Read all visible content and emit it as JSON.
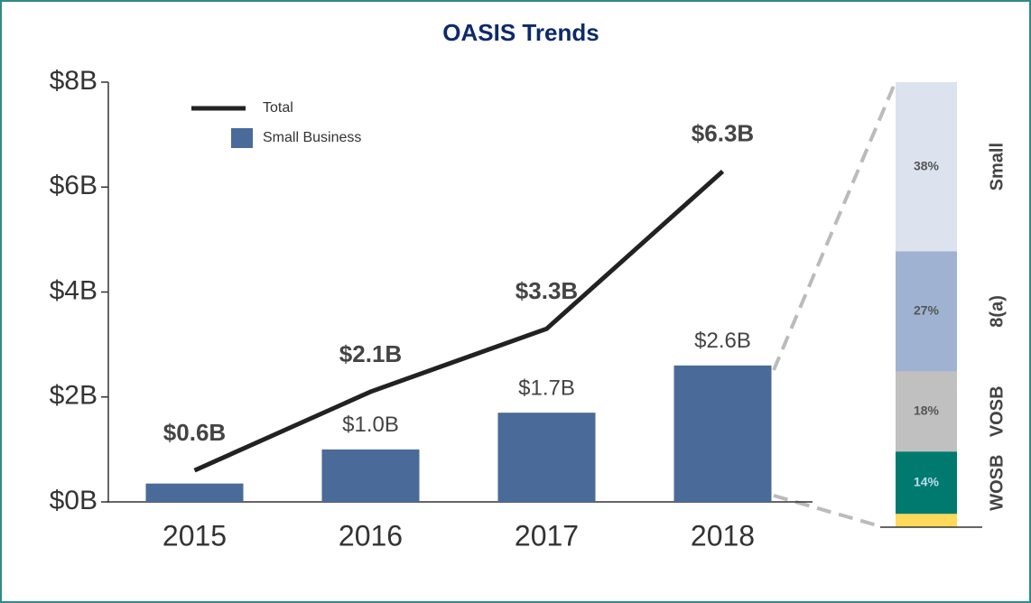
{
  "chart_data": [
    {
      "type": "bar",
      "title": "OASIS Trends",
      "categories": [
        "2015",
        "2016",
        "2017",
        "2018"
      ],
      "series": [
        {
          "name": "Total",
          "kind": "line",
          "color": "#222222",
          "values": [
            0.6,
            2.1,
            3.3,
            6.3
          ],
          "value_labels": [
            "$0.6B",
            "$2.1B",
            "$3.3B",
            "$6.3B"
          ]
        },
        {
          "name": "Small Business",
          "kind": "bar",
          "color": "#4a6a9a",
          "values": [
            0.35,
            1.0,
            1.7,
            2.6
          ],
          "value_labels": [
            null,
            "$1.0B",
            "$1.7B",
            "$2.6B"
          ]
        }
      ],
      "ylim": [
        0,
        8
      ],
      "yticks": [
        {
          "value": 0,
          "label": "$0B"
        },
        {
          "value": 2,
          "label": "$2B"
        },
        {
          "value": 4,
          "label": "$4B"
        },
        {
          "value": 6,
          "label": "$6B"
        },
        {
          "value": 8,
          "label": "$8B"
        }
      ],
      "legend": "top-left"
    },
    {
      "type": "stacked_bar",
      "categories": [
        "Small",
        "8(a)",
        "VOSB",
        "WOSB",
        null
      ],
      "values": [
        38,
        27,
        18,
        14,
        3
      ],
      "value_labels": [
        "38%",
        "27%",
        "18%",
        "14%",
        null
      ],
      "colors": [
        "#dce3ee",
        "#9fb2d1",
        "#c0c0c0",
        "#007a6e",
        "#ffd95a"
      ],
      "ylim": [
        0,
        100
      ]
    }
  ]
}
